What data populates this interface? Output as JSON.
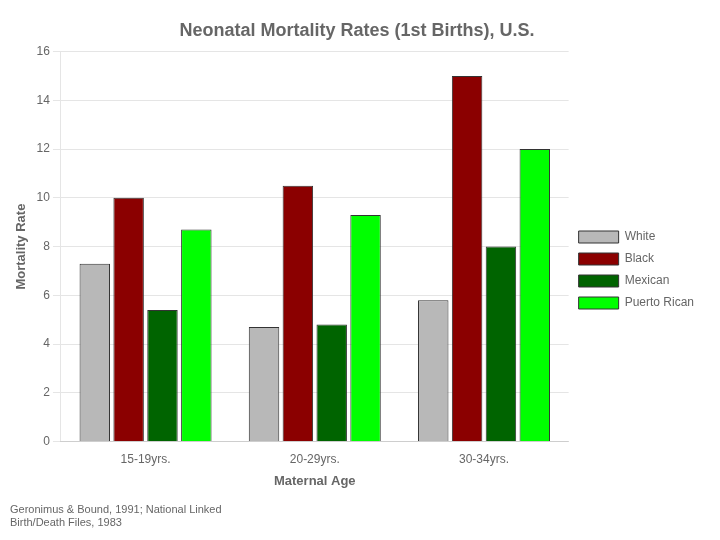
{
  "chart_data": {
    "type": "bar",
    "title": "Neonatal Mortality Rates (1st Births), U.S.",
    "xlabel": "Maternal Age",
    "ylabel": "Mortality Rate",
    "annotations": [
      "Geronimus & Bound, 1991; National Linked\nBirth/Death Files, 1983"
    ],
    "categories": [
      "15-19yrs.",
      "20-29yrs.",
      "30-34yrs."
    ],
    "series": [
      {
        "name": "White",
        "color": "#b8b8b8",
        "values": [
          7.3,
          4.7,
          5.8
        ]
      },
      {
        "name": "Black",
        "color": "#8b0000",
        "values": [
          10.0,
          10.5,
          15.0
        ]
      },
      {
        "name": "Mexican",
        "color": "#006400",
        "values": [
          5.4,
          4.8,
          8.0
        ]
      },
      {
        "name": "Puerto Rican",
        "color": "#00ff00",
        "values": [
          8.7,
          9.3,
          12.0
        ]
      }
    ],
    "ylim": [
      0,
      16
    ],
    "yticks": [
      0,
      2,
      4,
      6,
      8,
      10,
      12,
      14,
      16
    ],
    "grid": true,
    "legend": "right"
  }
}
